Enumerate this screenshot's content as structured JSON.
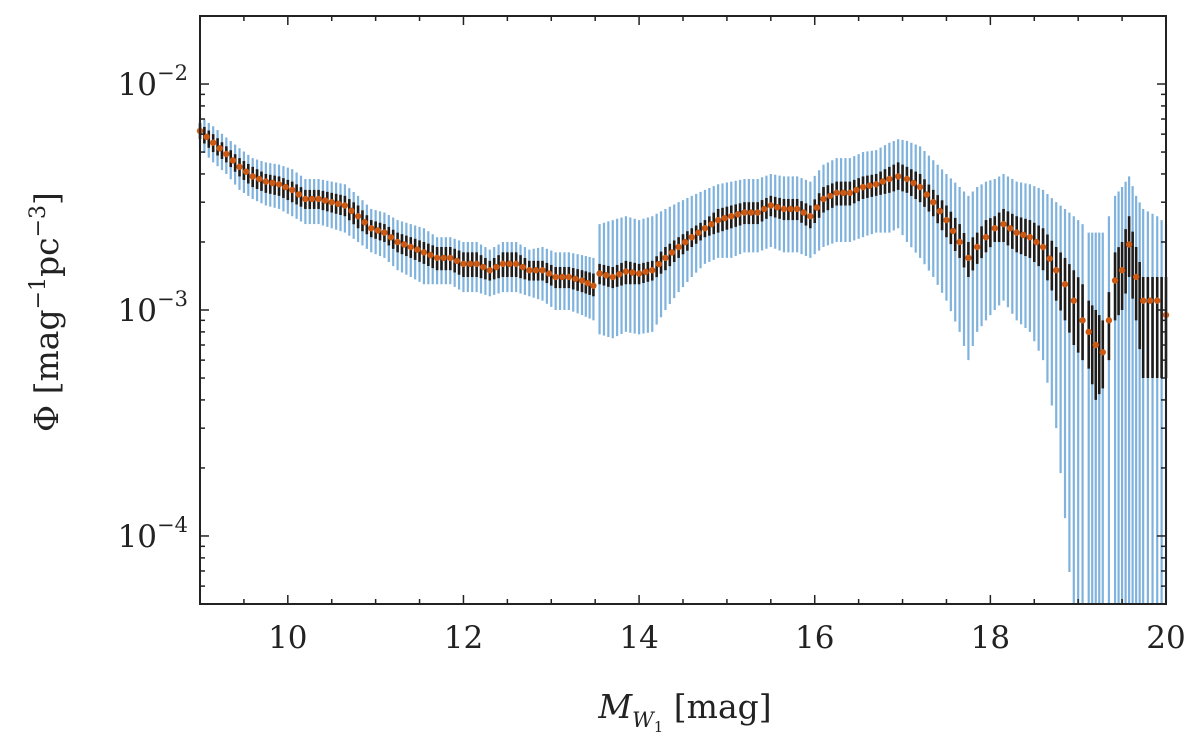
{
  "chart_data": {
    "type": "scatter",
    "x_title": {
      "main": "M",
      "sub": "W",
      "subsub": "1",
      "unit": " [mag]"
    },
    "y_title": {
      "prefix": "Φ [mag",
      "exp1": "−1",
      "mid": "pc",
      "exp2": "−3",
      "suffix": "]"
    },
    "x_scale": "linear",
    "y_scale": "log",
    "xlim": [
      9,
      20
    ],
    "ylim": [
      5e-05,
      0.02
    ],
    "x_ticks": [
      {
        "value": 10,
        "label": "10"
      },
      {
        "value": 12,
        "label": "12"
      },
      {
        "value": 14,
        "label": "14"
      },
      {
        "value": 16,
        "label": "16"
      },
      {
        "value": 18,
        "label": "18"
      },
      {
        "value": 20,
        "label": "20"
      }
    ],
    "y_ticks": [
      {
        "value": 0.01,
        "base": "10",
        "exp": "−2"
      },
      {
        "value": 0.001,
        "base": "10",
        "exp": "−3"
      },
      {
        "value": 0.0001,
        "base": "10",
        "exp": "−4"
      }
    ],
    "grid": false,
    "colors": {
      "points": "#cc5a14",
      "inner_err": "#1c1c1c",
      "outer_err": "#7fb2dd",
      "axes": "#222222"
    },
    "series": [
      {
        "x": [
          9.0,
          9.15,
          9.3,
          9.45,
          9.6,
          9.75,
          9.9,
          10.05,
          10.2,
          10.35,
          10.5,
          10.65,
          10.8,
          10.95,
          11.1,
          11.25,
          11.4,
          11.55,
          11.7,
          11.85,
          12.0,
          12.15,
          12.3,
          12.45,
          12.6,
          12.75,
          12.9,
          13.05,
          13.2,
          13.35,
          13.48,
          13.55,
          13.7,
          13.85,
          14.0,
          14.15,
          14.3,
          14.45,
          14.6,
          14.75,
          14.9,
          15.05,
          15.2,
          15.35,
          15.5,
          15.65,
          15.8,
          15.95,
          16.1,
          16.25,
          16.4,
          16.55,
          16.7,
          16.85,
          16.95,
          17.05,
          17.2,
          17.35,
          17.5,
          17.65,
          17.75,
          17.85,
          17.95,
          18.05,
          18.15,
          18.3,
          18.45,
          18.6,
          18.75,
          18.85,
          18.95,
          19.05,
          19.12,
          19.2,
          19.28,
          19.35,
          19.42,
          19.5,
          19.58,
          19.66,
          19.74,
          19.9,
          20.0
        ],
        "y": [
          0.0062,
          0.0055,
          0.0049,
          0.0043,
          0.0039,
          0.0037,
          0.0036,
          0.0034,
          0.0031,
          0.0031,
          0.003,
          0.0029,
          0.0026,
          0.0023,
          0.0022,
          0.002,
          0.0019,
          0.0018,
          0.0017,
          0.0017,
          0.0016,
          0.0016,
          0.0015,
          0.0016,
          0.0016,
          0.0015,
          0.0015,
          0.0014,
          0.0014,
          0.00135,
          0.00128,
          0.00145,
          0.0014,
          0.00148,
          0.00145,
          0.0015,
          0.0017,
          0.0019,
          0.0021,
          0.0023,
          0.0025,
          0.0026,
          0.0027,
          0.0027,
          0.0029,
          0.0028,
          0.0028,
          0.0026,
          0.0031,
          0.0033,
          0.0033,
          0.0035,
          0.0036,
          0.0038,
          0.0039,
          0.0038,
          0.0035,
          0.003,
          0.0025,
          0.002,
          0.0017,
          0.0019,
          0.0021,
          0.0023,
          0.0024,
          0.0022,
          0.0021,
          0.0019,
          0.0015,
          0.0013,
          0.0011,
          0.0009,
          0.0008,
          0.0007,
          0.00065,
          0.0009,
          0.00135,
          0.0015,
          0.00195,
          0.0014,
          0.0011,
          0.0011,
          0.00095
        ],
        "err_inner_lo": [
          0.0057,
          0.005,
          0.0045,
          0.0039,
          0.0035,
          0.0033,
          0.0032,
          0.003,
          0.0028,
          0.0028,
          0.0027,
          0.0026,
          0.0023,
          0.0021,
          0.002,
          0.0018,
          0.0017,
          0.0016,
          0.0015,
          0.0015,
          0.0014,
          0.0014,
          0.00135,
          0.0014,
          0.0014,
          0.00135,
          0.00135,
          0.00125,
          0.00125,
          0.0012,
          0.00115,
          0.0013,
          0.00125,
          0.0013,
          0.0013,
          0.00135,
          0.0015,
          0.0017,
          0.0019,
          0.0021,
          0.0022,
          0.0023,
          0.0024,
          0.0024,
          0.0026,
          0.0025,
          0.0025,
          0.0023,
          0.0027,
          0.0029,
          0.0029,
          0.0031,
          0.0032,
          0.0033,
          0.0034,
          0.0033,
          0.003,
          0.0026,
          0.0021,
          0.0017,
          0.0014,
          0.0016,
          0.0018,
          0.002,
          0.002,
          0.0018,
          0.0017,
          0.0015,
          0.0011,
          0.0009,
          0.0007,
          0.0006,
          0.00055,
          0.0004,
          0.00045,
          0.0006,
          0.0009,
          0.001,
          0.0014,
          0.0009,
          0.0005,
          0.0005,
          0.0005
        ],
        "err_inner_hi": [
          0.0067,
          0.006,
          0.0053,
          0.0047,
          0.0043,
          0.004,
          0.0039,
          0.0037,
          0.0034,
          0.0034,
          0.0033,
          0.0032,
          0.0029,
          0.0025,
          0.0024,
          0.0022,
          0.0021,
          0.002,
          0.0019,
          0.0019,
          0.0018,
          0.0018,
          0.00165,
          0.0018,
          0.0018,
          0.00165,
          0.00165,
          0.00155,
          0.00155,
          0.0015,
          0.00145,
          0.0016,
          0.00155,
          0.00165,
          0.0016,
          0.00165,
          0.0019,
          0.0021,
          0.0023,
          0.0025,
          0.0028,
          0.0029,
          0.003,
          0.003,
          0.0032,
          0.0031,
          0.0031,
          0.0029,
          0.0035,
          0.0037,
          0.0037,
          0.0039,
          0.004,
          0.0043,
          0.0045,
          0.0043,
          0.004,
          0.0034,
          0.0029,
          0.0024,
          0.002,
          0.0022,
          0.0025,
          0.0026,
          0.0028,
          0.0026,
          0.0025,
          0.0023,
          0.0019,
          0.0017,
          0.0015,
          0.0013,
          0.0011,
          0.001,
          0.0009,
          0.0012,
          0.0018,
          0.002,
          0.0026,
          0.0019,
          0.0014,
          0.0014,
          0.0014
        ],
        "err_outer_lo": [
          0.0052,
          0.0045,
          0.004,
          0.0034,
          0.0031,
          0.0029,
          0.0028,
          0.0026,
          0.0024,
          0.0024,
          0.0023,
          0.0022,
          0.002,
          0.0018,
          0.0017,
          0.0015,
          0.0014,
          0.0013,
          0.0013,
          0.0013,
          0.0012,
          0.0012,
          0.00115,
          0.0012,
          0.0012,
          0.00115,
          0.0011,
          0.001,
          0.001,
          0.00095,
          0.0009,
          0.00078,
          0.00075,
          0.0008,
          0.00078,
          0.0008,
          0.001,
          0.0012,
          0.0014,
          0.0016,
          0.0017,
          0.0017,
          0.0018,
          0.0018,
          0.0019,
          0.0018,
          0.0018,
          0.0017,
          0.0019,
          0.002,
          0.002,
          0.0021,
          0.0022,
          0.0022,
          0.0023,
          0.002,
          0.0017,
          0.0014,
          0.0011,
          0.0008,
          0.0006,
          0.0008,
          0.0009,
          0.001,
          0.0011,
          0.0009,
          0.0008,
          0.0006,
          0.0003,
          0.00012,
          4e-05,
          4e-05,
          4e-05,
          4e-05,
          4e-05,
          4e-05,
          4e-05,
          4e-05,
          4e-05,
          4e-05,
          4e-05,
          4e-05,
          4e-05
        ],
        "err_outer_hi": [
          0.0072,
          0.0065,
          0.0058,
          0.0052,
          0.0047,
          0.0045,
          0.0044,
          0.0042,
          0.0038,
          0.0038,
          0.0037,
          0.0036,
          0.0032,
          0.0028,
          0.0027,
          0.0025,
          0.0024,
          0.0023,
          0.0021,
          0.0021,
          0.002,
          0.002,
          0.00185,
          0.002,
          0.002,
          0.00185,
          0.0019,
          0.0018,
          0.0018,
          0.00175,
          0.0017,
          0.0024,
          0.0025,
          0.0026,
          0.0025,
          0.0026,
          0.0028,
          0.003,
          0.0032,
          0.0034,
          0.0036,
          0.0037,
          0.0038,
          0.0038,
          0.004,
          0.0039,
          0.0039,
          0.0037,
          0.0044,
          0.0047,
          0.0047,
          0.005,
          0.0051,
          0.0055,
          0.0057,
          0.0056,
          0.0053,
          0.0046,
          0.004,
          0.0035,
          0.0032,
          0.0035,
          0.0037,
          0.0038,
          0.004,
          0.0037,
          0.0036,
          0.0034,
          0.003,
          0.0028,
          0.0026,
          0.0024,
          0.0022,
          0.0022,
          0.0022,
          0.0026,
          0.0032,
          0.0035,
          0.0039,
          0.0032,
          0.0028,
          0.0026,
          0.0024
        ]
      }
    ]
  }
}
